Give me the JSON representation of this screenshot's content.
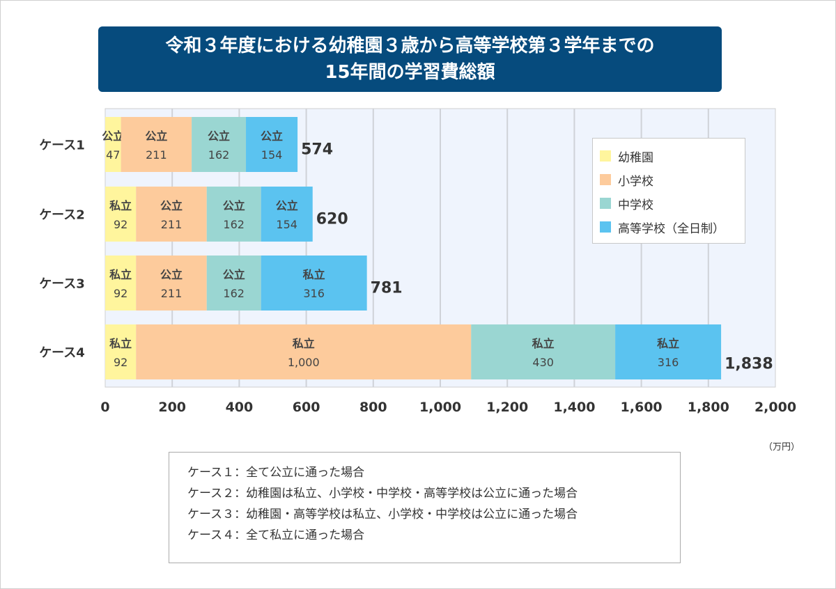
{
  "title_line1": "令和３年度における幼稚園３歳から高等学校第３学年までの",
  "title_line2": "15年間の学習費総額",
  "unit": "（万円）",
  "legend": [
    {
      "label": "幼稚園",
      "color": "#fff59d"
    },
    {
      "label": "小学校",
      "color": "#fdcb9c"
    },
    {
      "label": "中学校",
      "color": "#9ad6d2"
    },
    {
      "label": "高等学校（全日制）",
      "color": "#5bc3f0"
    }
  ],
  "notes": [
    "ケース１：全て公立に通った場合",
    "ケース２：幼稚園は私立、小学校・中学校・高等学校は公立に通った場合",
    "ケース３：幼稚園・高等学校は私立、小学校・中学校は公立に通った場合",
    "ケース４：全て私立に通った場合"
  ],
  "chart_data": {
    "type": "bar",
    "orientation": "horizontal",
    "stacked": true,
    "categories": [
      "ケース1",
      "ケース2",
      "ケース3",
      "ケース4"
    ],
    "series": [
      {
        "name": "幼稚園",
        "values": [
          47,
          92,
          92,
          92
        ],
        "labels": [
          "公立",
          "私立",
          "私立",
          "私立"
        ],
        "value_labels": [
          "47",
          "92",
          "92",
          "92"
        ]
      },
      {
        "name": "小学校",
        "values": [
          211,
          211,
          211,
          1000
        ],
        "labels": [
          "公立",
          "公立",
          "公立",
          "私立"
        ],
        "value_labels": [
          "211",
          "211",
          "211",
          "1,000"
        ]
      },
      {
        "name": "中学校",
        "values": [
          162,
          162,
          162,
          430
        ],
        "labels": [
          "公立",
          "公立",
          "公立",
          "私立"
        ],
        "value_labels": [
          "162",
          "162",
          "162",
          "430"
        ]
      },
      {
        "name": "高等学校（全日制）",
        "values": [
          154,
          154,
          316,
          316
        ],
        "labels": [
          "公立",
          "公立",
          "私立",
          "私立"
        ],
        "value_labels": [
          "154",
          "154",
          "316",
          "316"
        ]
      }
    ],
    "totals": [
      "574",
      "620",
      "781",
      "1,838"
    ],
    "xlim": [
      0,
      2000
    ],
    "xticks": [
      "0",
      "200",
      "400",
      "600",
      "800",
      "1,000",
      "1,200",
      "1,400",
      "1,600",
      "1,800",
      "2,000"
    ],
    "grid": true,
    "legend_position": "top-right"
  }
}
